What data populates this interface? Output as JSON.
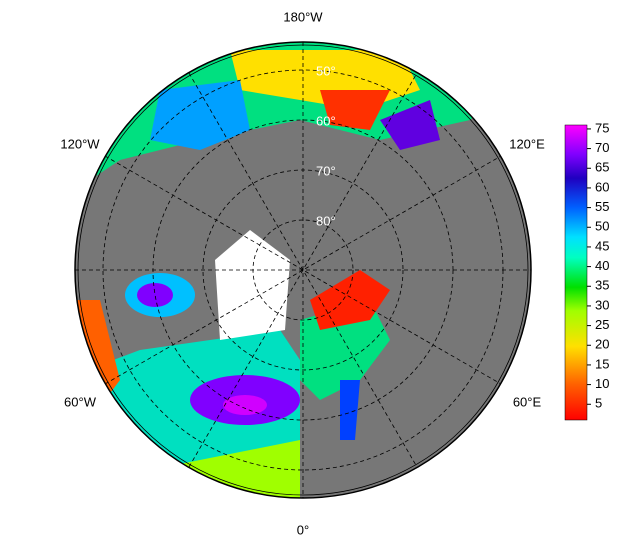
{
  "map": {
    "longitude_labels": {
      "top": "180°W",
      "upper_left": "120°W",
      "upper_right": "120°E",
      "lower_left": "60°W",
      "lower_right": "60°E",
      "bottom": "0°"
    },
    "latitude_labels": [
      "50°",
      "60°",
      "70°",
      "80°"
    ],
    "colorbar": {
      "range": [
        1,
        76
      ],
      "ticks": [
        5,
        10,
        15,
        20,
        25,
        30,
        35,
        40,
        45,
        50,
        55,
        60,
        65,
        70,
        75
      ]
    }
  }
}
